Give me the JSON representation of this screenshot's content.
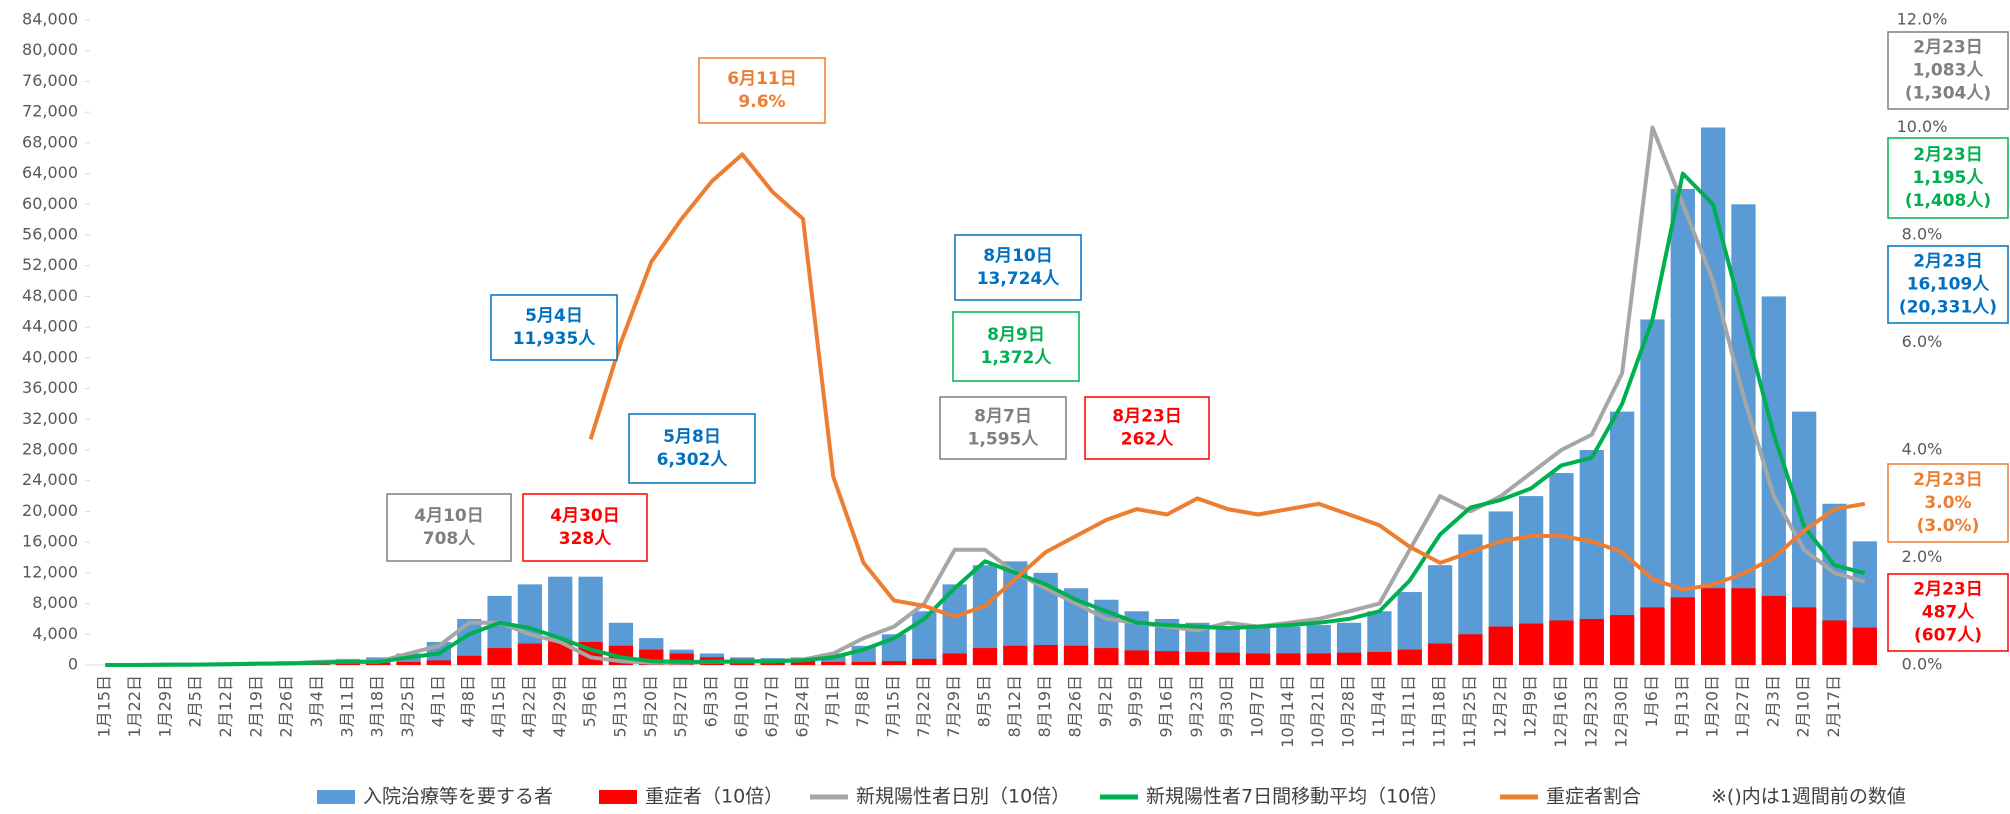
{
  "chart_data": {
    "type": "combo",
    "categories": [
      "1月15日",
      "1月22日",
      "1月29日",
      "2月5日",
      "2月12日",
      "2月19日",
      "2月26日",
      "3月4日",
      "3月11日",
      "3月18日",
      "3月25日",
      "4月1日",
      "4月8日",
      "4月15日",
      "4月22日",
      "4月29日",
      "5月6日",
      "5月13日",
      "5月20日",
      "5月27日",
      "6月3日",
      "6月10日",
      "6月17日",
      "6月24日",
      "7月1日",
      "7月8日",
      "7月15日",
      "7月22日",
      "7月29日",
      "8月5日",
      "8月12日",
      "8月19日",
      "8月26日",
      "9月2日",
      "9月9日",
      "9月16日",
      "9月23日",
      "9月30日",
      "10月7日",
      "10月14日",
      "10月21日",
      "10月28日",
      "11月4日",
      "11月11日",
      "11月18日",
      "11月25日",
      "12月2日",
      "12月9日",
      "12月16日",
      "12月23日",
      "12月30日",
      "1月6日",
      "1月13日",
      "1月20日",
      "1月27日",
      "2月3日",
      "2月10日",
      "2月17日",
      null
    ],
    "series": [
      {
        "name": "入院治療等を要する者",
        "color": "#5b9bd5",
        "kind": "bar",
        "values": [
          0,
          0,
          50,
          100,
          200,
          300,
          500,
          600,
          800,
          1000,
          1500,
          3000,
          6000,
          9000,
          10500,
          11500,
          11500,
          5500,
          3500,
          2000,
          1500,
          1000,
          900,
          1000,
          1500,
          2500,
          4000,
          7000,
          10500,
          13000,
          13500,
          12000,
          10000,
          8500,
          7000,
          6000,
          5500,
          5000,
          5000,
          5000,
          5200,
          5500,
          7000,
          9500,
          13000,
          17000,
          20000,
          22000,
          25000,
          28000,
          33000,
          45000,
          62000,
          70000,
          60000,
          48000,
          33000,
          21000,
          16109
        ]
      },
      {
        "name": "重症者（10倍）",
        "color": "#ff0000",
        "kind": "bar",
        "values": [
          0,
          0,
          0,
          0,
          20,
          50,
          100,
          150,
          200,
          300,
          400,
          600,
          1200,
          2200,
          2800,
          3200,
          3000,
          2500,
          2000,
          1500,
          1000,
          800,
          700,
          600,
          400,
          400,
          500,
          800,
          1500,
          2200,
          2500,
          2600,
          2500,
          2200,
          1900,
          1800,
          1700,
          1600,
          1500,
          1500,
          1500,
          1600,
          1700,
          2000,
          2800,
          4000,
          5000,
          5400,
          5800,
          6000,
          6500,
          7500,
          8800,
          10000,
          10000,
          9000,
          7500,
          5800,
          4870
        ]
      },
      {
        "name": "新規陽性者日別（10倍）",
        "color": "#a6a6a6",
        "kind": "line",
        "values": [
          0,
          0,
          50,
          50,
          100,
          200,
          200,
          400,
          500,
          400,
          1500,
          2500,
          5500,
          5500,
          4000,
          3000,
          1000,
          500,
          300,
          300,
          400,
          500,
          500,
          700,
          1500,
          3500,
          5000,
          8000,
          15000,
          15000,
          12000,
          10000,
          8000,
          6000,
          5500,
          5000,
          4500,
          5500,
          5000,
          5500,
          6000,
          7000,
          8000,
          15000,
          22000,
          20000,
          22000,
          25000,
          28000,
          30000,
          38000,
          70000,
          60000,
          50000,
          35000,
          22000,
          15000,
          12000,
          10830
        ]
      },
      {
        "name": "新規陽性者7日間移動平均（10倍）",
        "color": "#00b050",
        "kind": "line",
        "values": [
          0,
          0,
          30,
          50,
          100,
          150,
          200,
          300,
          400,
          400,
          1000,
          1500,
          4000,
          5500,
          4800,
          3500,
          2000,
          1000,
          500,
          400,
          400,
          450,
          500,
          600,
          1000,
          2000,
          3500,
          6000,
          10000,
          13500,
          12000,
          10500,
          8500,
          7000,
          5500,
          5200,
          5000,
          4800,
          5000,
          5200,
          5500,
          6000,
          7000,
          11000,
          17000,
          20500,
          21500,
          23000,
          26000,
          27000,
          34000,
          45000,
          64000,
          60000,
          45000,
          30000,
          18000,
          13000,
          11950
        ]
      },
      {
        "name": "重症者割合",
        "color": "#ed7d31",
        "kind": "line",
        "axis": "y2",
        "values": [
          null,
          null,
          null,
          null,
          null,
          null,
          null,
          null,
          null,
          null,
          null,
          null,
          null,
          null,
          null,
          null,
          4.2,
          6.0,
          7.5,
          8.3,
          9.0,
          9.5,
          8.8,
          8.3,
          3.5,
          1.9,
          1.2,
          1.1,
          0.9,
          1.1,
          1.6,
          2.1,
          2.4,
          2.7,
          2.9,
          2.8,
          3.1,
          2.9,
          2.8,
          2.9,
          3.0,
          2.8,
          2.6,
          2.2,
          1.9,
          2.1,
          2.3,
          2.4,
          2.4,
          2.3,
          2.1,
          1.6,
          1.4,
          1.5,
          1.7,
          2.0,
          2.5,
          2.9,
          3.0
        ]
      }
    ],
    "ylim": [
      0,
      84000
    ],
    "yticks": [
      {
        "value": 0,
        "label": "0"
      },
      {
        "value": 4000,
        "label": "4,000"
      },
      {
        "value": 8000,
        "label": "8,000"
      },
      {
        "value": 12000,
        "label": "12,000"
      },
      {
        "value": 16000,
        "label": "16,000"
      },
      {
        "value": 20000,
        "label": "20,000"
      },
      {
        "value": 24000,
        "label": "24,000"
      },
      {
        "value": 28000,
        "label": "28,000"
      },
      {
        "value": 32000,
        "label": "32,000"
      },
      {
        "value": 36000,
        "label": "36,000"
      },
      {
        "value": 40000,
        "label": "40,000"
      },
      {
        "value": 44000,
        "label": "44,000"
      },
      {
        "value": 48000,
        "label": "48,000"
      },
      {
        "value": 52000,
        "label": "52,000"
      },
      {
        "value": 56000,
        "label": "56,000"
      },
      {
        "value": 60000,
        "label": "60,000"
      },
      {
        "value": 64000,
        "label": "64,000"
      },
      {
        "value": 68000,
        "label": "68,000"
      },
      {
        "value": 72000,
        "label": "72,000"
      },
      {
        "value": 76000,
        "label": "76,000"
      },
      {
        "value": 80000,
        "label": "80,000"
      },
      {
        "value": 84000,
        "label": "84,000"
      }
    ],
    "y2lim": [
      0,
      12
    ],
    "y2ticks": [
      {
        "value": 0,
        "label": "0.0%"
      },
      {
        "value": 2,
        "label": "2.0%"
      },
      {
        "value": 4,
        "label": "4.0%"
      },
      {
        "value": 6,
        "label": "6.0%"
      },
      {
        "value": 8,
        "label": "8.0%"
      },
      {
        "value": 10,
        "label": "10.0%"
      },
      {
        "value": 12,
        "label": "12.0%"
      }
    ],
    "grid": false,
    "legend_note": "※()内は1週間前の数値",
    "annotations": [
      {
        "color": "#ed7d31",
        "lines": [
          "6月11日",
          "9.6%"
        ]
      },
      {
        "color": "#0070c0",
        "lines": [
          "5月4日",
          "11,935人"
        ]
      },
      {
        "color": "#0070c0",
        "lines": [
          "5月8日",
          "6,302人"
        ]
      },
      {
        "color": "#7f7f7f",
        "lines": [
          "4月10日",
          "708人"
        ]
      },
      {
        "color": "#ff0000",
        "lines": [
          "4月30日",
          "328人"
        ]
      },
      {
        "color": "#0070c0",
        "lines": [
          "8月10日",
          "13,724人"
        ]
      },
      {
        "color": "#00b050",
        "lines": [
          "8月9日",
          "1,372人"
        ]
      },
      {
        "color": "#7f7f7f",
        "lines": [
          "8月7日",
          "1,595人"
        ]
      },
      {
        "color": "#ff0000",
        "lines": [
          "8月23日",
          "262人"
        ]
      },
      {
        "color": "#7f7f7f",
        "lines": [
          "2月23日",
          "1,083人",
          "(1,304人)"
        ]
      },
      {
        "color": "#00b050",
        "lines": [
          "2月23日",
          "1,195人",
          "(1,408人)"
        ]
      },
      {
        "color": "#0070c0",
        "lines": [
          "2月23日",
          "16,109人",
          "(20,331人)"
        ]
      },
      {
        "color": "#ed7d31",
        "lines": [
          "2月23日",
          "3.0%",
          "(3.0%)"
        ]
      },
      {
        "color": "#ff0000",
        "lines": [
          "2月23日",
          "487人",
          "(607人)"
        ]
      }
    ]
  }
}
